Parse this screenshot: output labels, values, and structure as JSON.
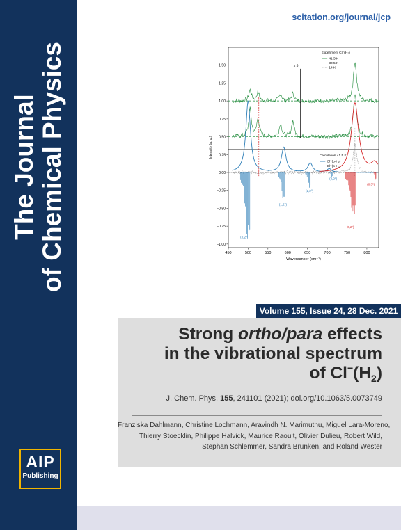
{
  "journal": {
    "title_line1": "The Journal",
    "title_line2": "of Chemical Physics",
    "url": "scitation.org/journal/jcp"
  },
  "volume_info": "Volume 155, Issue 24, 28 Dec. 2021",
  "article": {
    "title_line1_a": "Strong ",
    "title_line1_b": "ortho/para",
    "title_line1_c": " effects",
    "title_line2": "in the vibrational spectrum",
    "title_line3_a": "of Cl",
    "title_line3_sup": "−",
    "title_line3_b": "(H",
    "title_line3_sub": "2",
    "title_line3_c": ")",
    "citation_pre": "J. Chem. Phys. ",
    "citation_vol": "155",
    "citation_post": ", 241101 (2021); doi.org/10.1063/5.0073749",
    "authors": [
      "Franziska Dahlmann, Christine Lochmann, Aravindh N. Marimuthu, Miguel Lara-Moreno,",
      "Thierry Stoecklin, Philippe Halvick, Maurice Raoult, Olivier Dulieu, Robert Wild,",
      "Stephan Schlemmer, Sandra Brunken, and Roland Wester"
    ]
  },
  "publisher": {
    "logo_line1": "AIP",
    "logo_line2": "Publishing"
  },
  "colors": {
    "spine": "#12325c",
    "accent_gold": "#f0b400",
    "url_blue": "#2b5fa8",
    "green": "#1f8a3a",
    "blue": "#2f7fb8",
    "red": "#d62728"
  },
  "chart_data": {
    "type": "line",
    "xlabel": "Wavenumber (cm⁻¹)",
    "ylabel": "Intensity (a. u.)",
    "xlim": [
      450,
      830
    ],
    "ylim": [
      -1.05,
      1.75
    ],
    "xticks": [
      450,
      500,
      550,
      600,
      650,
      700,
      750,
      800
    ],
    "yticks": [
      -1.0,
      -0.75,
      -0.5,
      -0.25,
      0.0,
      0.25,
      0.5,
      0.75,
      1.0,
      1.25,
      1.5
    ],
    "ytick_labels": [
      "−1.00",
      "−0.75",
      "−0.50",
      "−0.25",
      "0.00",
      "0.25",
      "0.50",
      "0.75",
      "1.00",
      "1.25",
      "1.50"
    ],
    "top_panel": {
      "title": "Experiment Cl⁻(H₂)",
      "scale_label": "x 5",
      "series": [
        {
          "name": "41.5 K",
          "color": "#1f8a3a",
          "offset": 1.0,
          "peaks": [
            [
              505,
              0.15
            ],
            [
              525,
              0.12
            ],
            [
              582,
              0.1
            ],
            [
              613,
              0.1
            ],
            [
              770,
              0.55
            ]
          ]
        },
        {
          "name": "30.5 K",
          "color": "#1f8a3a",
          "offset": 0.5,
          "peaks": [
            [
              505,
              0.38
            ],
            [
              525,
              0.25
            ],
            [
              582,
              0.18
            ],
            [
              613,
              0.22
            ],
            [
              770,
              0.6
            ]
          ]
        },
        {
          "name": "14 K",
          "color": "#888888",
          "offset": 0.0,
          "peaks": [
            [
              770,
              0.42
            ]
          ]
        }
      ]
    },
    "bottom_panel": {
      "title": "Calculation 41.5 K",
      "series": [
        {
          "name": "Cl⁻(p-H₂)",
          "color": "#2f7fb8",
          "peaks": [
            [
              500,
              1.0
            ],
            [
              590,
              0.35
            ],
            [
              657,
              0.13
            ],
            [
              705,
              0.05
            ]
          ]
        },
        {
          "name": "Cl⁻(o-H₂)",
          "color": "#d62728",
          "peaks": [
            [
              770,
              0.97
            ],
            [
              820,
              0.12
            ]
          ]
        }
      ],
      "stick_labels": [
        {
          "x": 490,
          "y": -0.92,
          "text": "(0,2⁰)",
          "color": "#2f7fb8"
        },
        {
          "x": 588,
          "y": -0.46,
          "text": "(1,2⁰)",
          "color": "#2f7fb8"
        },
        {
          "x": 655,
          "y": -0.27,
          "text": "(2,2⁰)",
          "color": "#2f7fb8"
        },
        {
          "x": 715,
          "y": -0.1,
          "text": "(3,2⁰)",
          "color": "#2f7fb8"
        },
        {
          "x": 758,
          "y": -0.78,
          "text": "(0,2¹)",
          "color": "#d62728"
        },
        {
          "x": 810,
          "y": -0.18,
          "text": "(0,3¹)",
          "color": "#d62728"
        }
      ]
    }
  }
}
